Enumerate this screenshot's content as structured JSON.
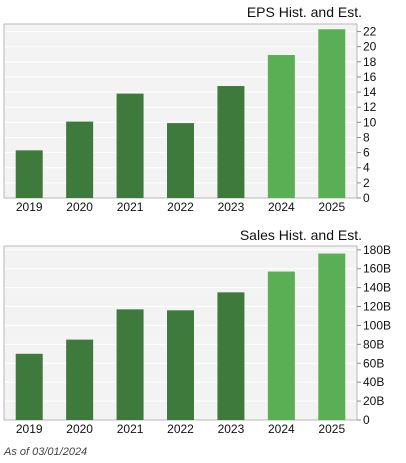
{
  "colors": {
    "historical": "#3f7a3d",
    "estimate": "#5aaf55",
    "panel_bg": "#f3f3f3",
    "grid": "#ffffff",
    "border": "#b8b8b8"
  },
  "chart_data": [
    {
      "type": "bar",
      "title": "EPS Hist. and Est.",
      "categories": [
        "2019",
        "2020",
        "2021",
        "2022",
        "2023",
        "2024",
        "2025"
      ],
      "values": [
        6.3,
        10.1,
        13.8,
        9.9,
        14.8,
        18.9,
        22.3
      ],
      "estimate_from_index": 5,
      "ylim": [
        0,
        23
      ],
      "yticks": [
        "0",
        "2",
        "4",
        "6",
        "8",
        "10",
        "12",
        "14",
        "16",
        "18",
        "20",
        "22"
      ],
      "ytick_values": [
        0,
        2,
        4,
        6,
        8,
        10,
        12,
        14,
        16,
        18,
        20,
        22
      ],
      "grid": true,
      "y_axis_side": "right"
    },
    {
      "type": "bar",
      "title": "Sales Hist. and Est.",
      "categories": [
        "2019",
        "2020",
        "2021",
        "2022",
        "2023",
        "2024",
        "2025"
      ],
      "values": [
        70,
        85,
        117,
        116,
        135,
        157,
        176
      ],
      "estimate_from_index": 5,
      "ylim": [
        0,
        184
      ],
      "yticks": [
        "0",
        "20B",
        "40B",
        "60B",
        "80B",
        "100B",
        "120B",
        "140B",
        "160B",
        "180B"
      ],
      "ytick_values": [
        0,
        20,
        40,
        60,
        80,
        100,
        120,
        140,
        160,
        180
      ],
      "grid": true,
      "y_axis_side": "right"
    }
  ],
  "footnote": "As of 03/01/2024"
}
